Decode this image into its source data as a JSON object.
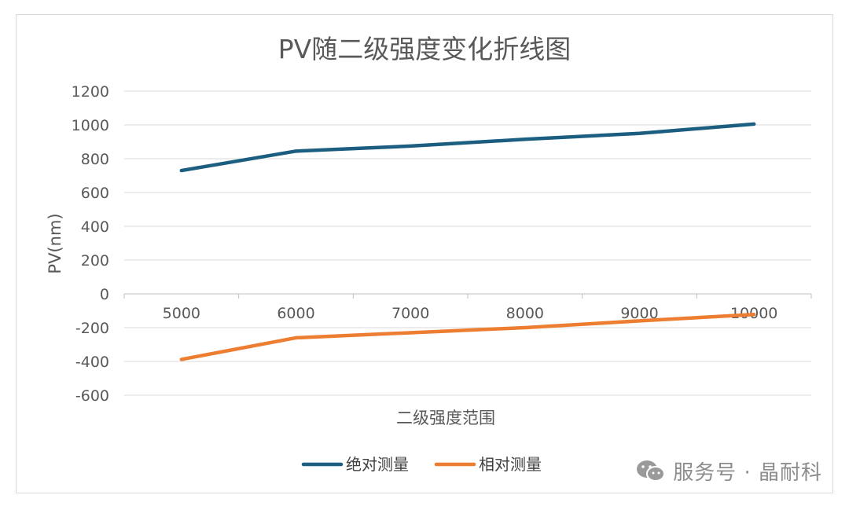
{
  "chart_data": {
    "type": "line",
    "title": "PV随二级强度变化折线图",
    "xlabel": "二级强度范围",
    "ylabel": "PV(nm)",
    "categories": [
      "5000",
      "6000",
      "7000",
      "8000",
      "9000",
      "10000"
    ],
    "y_ticks": [
      "1200",
      "1000",
      "800",
      "600",
      "400",
      "200",
      "0",
      "-200",
      "-400",
      "-600"
    ],
    "ylim": [
      -600,
      1200
    ],
    "grid": true,
    "legend_position": "bottom",
    "series": [
      {
        "name": "绝对测量",
        "color": "#1b5e80",
        "values": [
          730,
          845,
          875,
          915,
          950,
          1005
        ]
      },
      {
        "name": "相对测量",
        "color": "#ed7d31",
        "values": [
          -388,
          -260,
          -230,
          -200,
          -160,
          -122
        ]
      }
    ]
  },
  "watermark": {
    "icon": "wechat-icon",
    "text": "服务号 · 晶耐科"
  }
}
